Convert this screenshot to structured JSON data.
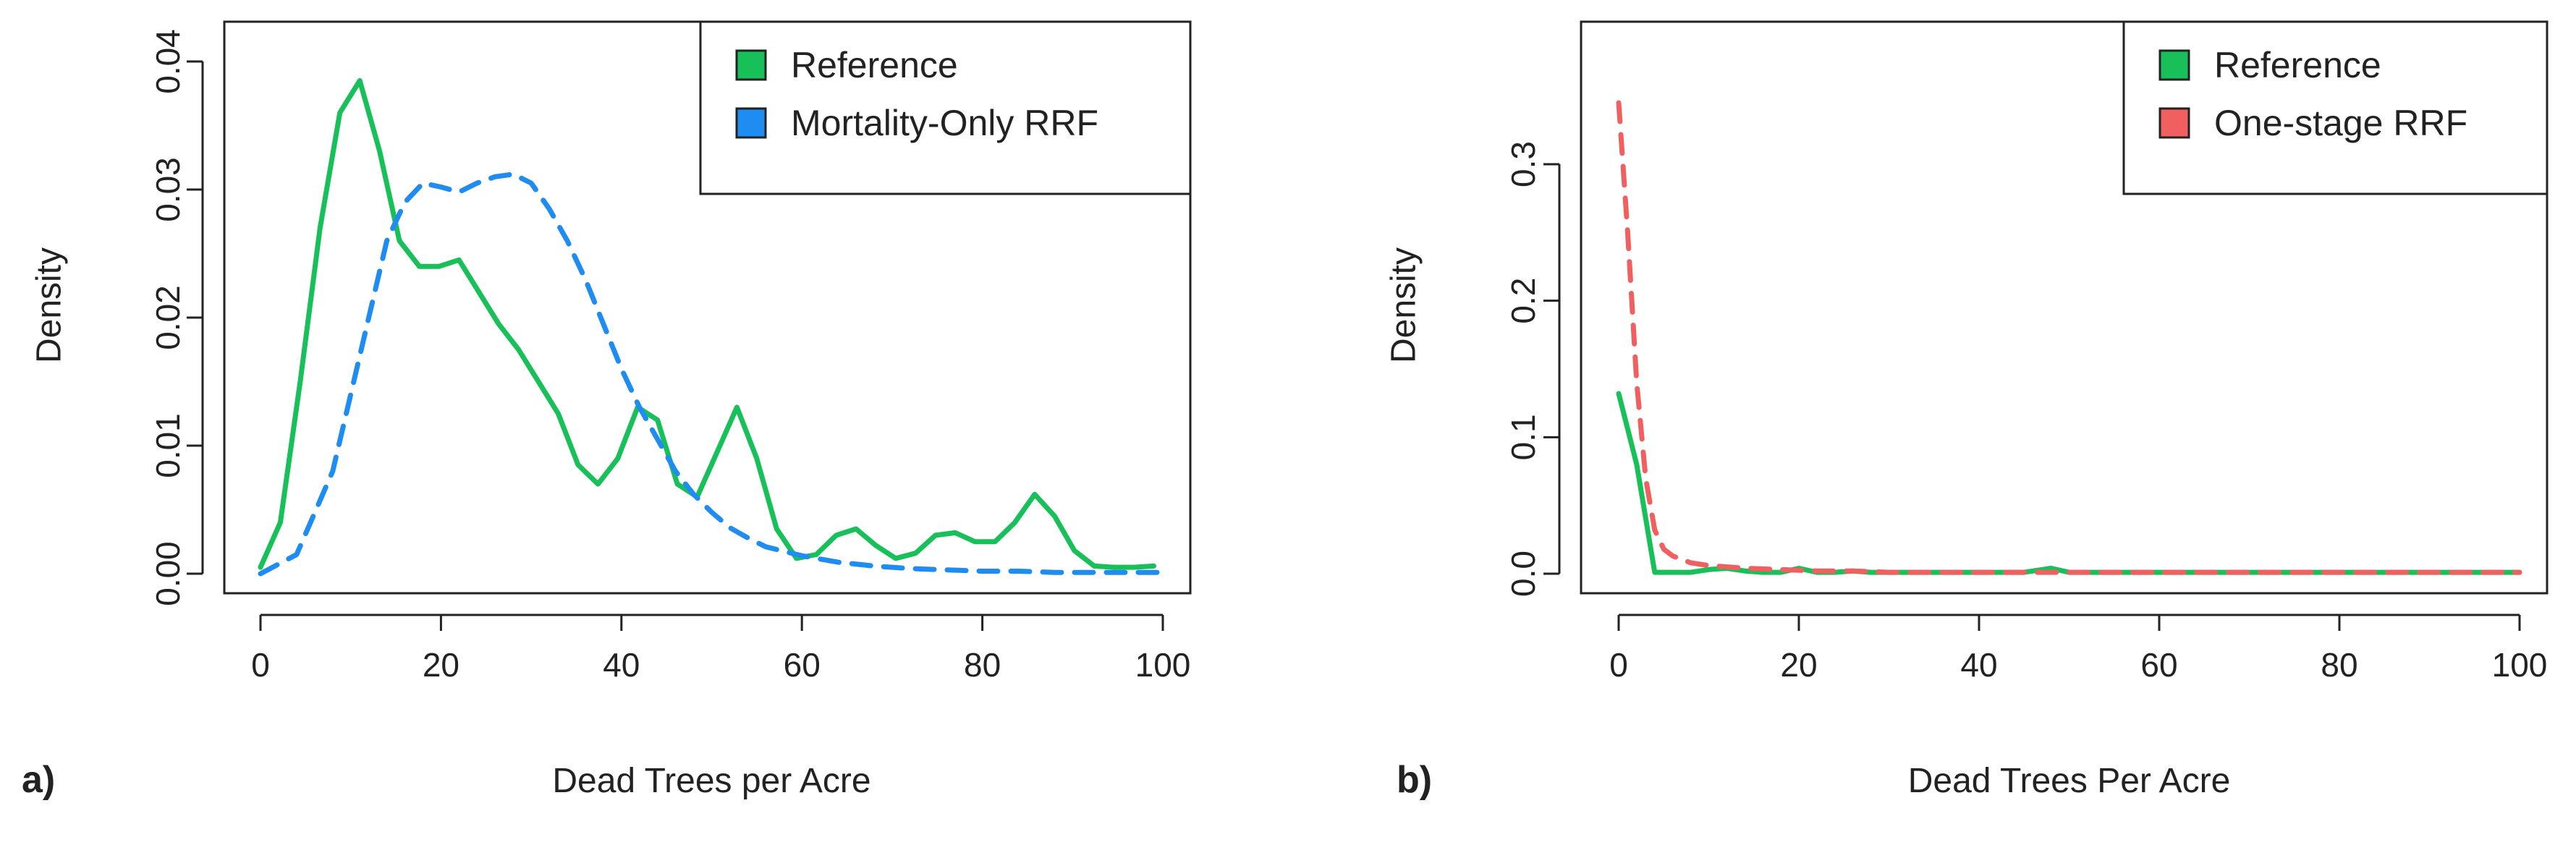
{
  "chart_data": [
    {
      "type": "line",
      "panel_label": "a)",
      "xlabel": "Dead Trees per Acre",
      "ylabel": "Density",
      "xlim": [
        0,
        100
      ],
      "ylim": [
        0,
        0.04
      ],
      "xticks": [
        "0",
        "20",
        "40",
        "60",
        "80",
        "100"
      ],
      "yticks": [
        "0.00",
        "0.01",
        "0.02",
        "0.03",
        "0.04"
      ],
      "legend_position": "top-right",
      "legend": [
        "Reference",
        "Mortality-Only RRF"
      ],
      "series": [
        {
          "name": "Reference",
          "color": "#18c05a",
          "style": "solid",
          "x": [
            0,
            2.2,
            4.4,
            6.6,
            8.8,
            11,
            13.2,
            15.4,
            17.6,
            19.8,
            22,
            24.2,
            26.4,
            28.6,
            30.8,
            33,
            35.2,
            37.4,
            39.6,
            41.8,
            44,
            46.2,
            48.4,
            50.6,
            52.8,
            55,
            57.2,
            59.4,
            61.6,
            63.8,
            66,
            68.2,
            70.4,
            72.6,
            74.8,
            77,
            79.2,
            81.4,
            83.6,
            85.8,
            88,
            90.2,
            92.4,
            94.6,
            96.8,
            99
          ],
          "values": [
            0.0005,
            0.004,
            0.015,
            0.027,
            0.036,
            0.0385,
            0.033,
            0.026,
            0.024,
            0.024,
            0.0245,
            0.022,
            0.0195,
            0.0175,
            0.015,
            0.0125,
            0.0085,
            0.007,
            0.009,
            0.013,
            0.012,
            0.007,
            0.006,
            0.0095,
            0.013,
            0.009,
            0.0035,
            0.0012,
            0.0015,
            0.003,
            0.0035,
            0.0022,
            0.0012,
            0.0016,
            0.003,
            0.0032,
            0.0025,
            0.0025,
            0.004,
            0.0062,
            0.0045,
            0.0018,
            0.0006,
            0.0005,
            0.0005,
            0.0006
          ]
        },
        {
          "name": "Mortality-Only RRF",
          "color": "#1e8cf0",
          "style": "dashed",
          "x": [
            0,
            4,
            8,
            12,
            14,
            16,
            18,
            20,
            22,
            24,
            26,
            28,
            30,
            32,
            34,
            36,
            38,
            40,
            42,
            44,
            46,
            48,
            50,
            52,
            54,
            56,
            60,
            64,
            68,
            72,
            76,
            80,
            84,
            88,
            92,
            96,
            100
          ],
          "values": [
            0,
            0.0015,
            0.008,
            0.02,
            0.026,
            0.029,
            0.0305,
            0.0302,
            0.0298,
            0.0305,
            0.031,
            0.0312,
            0.0305,
            0.0285,
            0.026,
            0.023,
            0.0195,
            0.016,
            0.013,
            0.0105,
            0.008,
            0.0062,
            0.0048,
            0.0036,
            0.0028,
            0.0021,
            0.0014,
            0.0009,
            0.0006,
            0.0004,
            0.0003,
            0.0002,
            0.0002,
            0.0001,
            0.0001,
            0.0001,
            0.0001
          ]
        }
      ]
    },
    {
      "type": "line",
      "panel_label": "b)",
      "xlabel": "Dead Trees Per Acre",
      "ylabel": "Density",
      "xlim": [
        0,
        100
      ],
      "ylim": [
        0,
        0.3
      ],
      "xticks": [
        "0",
        "20",
        "40",
        "60",
        "80",
        "100"
      ],
      "yticks": [
        "0.0",
        "0.1",
        "0.2",
        "0.3"
      ],
      "legend_position": "top-right",
      "legend": [
        "Reference",
        "One-stage RRF"
      ],
      "series": [
        {
          "name": "Reference",
          "color": "#18c05a",
          "style": "solid",
          "x": [
            0,
            2,
            4,
            6,
            8,
            10,
            12,
            14,
            16,
            18,
            20,
            22,
            24,
            26,
            28,
            30,
            35,
            40,
            45,
            48,
            50,
            55,
            60,
            65,
            70,
            75,
            80,
            85,
            90,
            95,
            100
          ],
          "values": [
            0.132,
            0.08,
            0.001,
            0.001,
            0.001,
            0.003,
            0.004,
            0.002,
            0.001,
            0.001,
            0.004,
            0.001,
            0.001,
            0.002,
            0.001,
            0.001,
            0.001,
            0.001,
            0.001,
            0.004,
            0.001,
            0.001,
            0.001,
            0.001,
            0.001,
            0.001,
            0.001,
            0.001,
            0.001,
            0.001,
            0.001
          ]
        },
        {
          "name": "One-stage RRF",
          "color": "#f06060",
          "style": "dashed",
          "x": [
            0,
            1,
            2,
            3,
            4,
            5,
            6,
            8,
            10,
            14,
            18,
            22,
            26,
            30,
            40,
            50,
            60,
            70,
            80,
            90,
            100
          ],
          "values": [
            0.345,
            0.25,
            0.14,
            0.07,
            0.032,
            0.018,
            0.013,
            0.008,
            0.006,
            0.004,
            0.003,
            0.002,
            0.002,
            0.001,
            0.001,
            0.001,
            0.001,
            0.001,
            0.001,
            0.001,
            0.001
          ]
        }
      ]
    }
  ]
}
